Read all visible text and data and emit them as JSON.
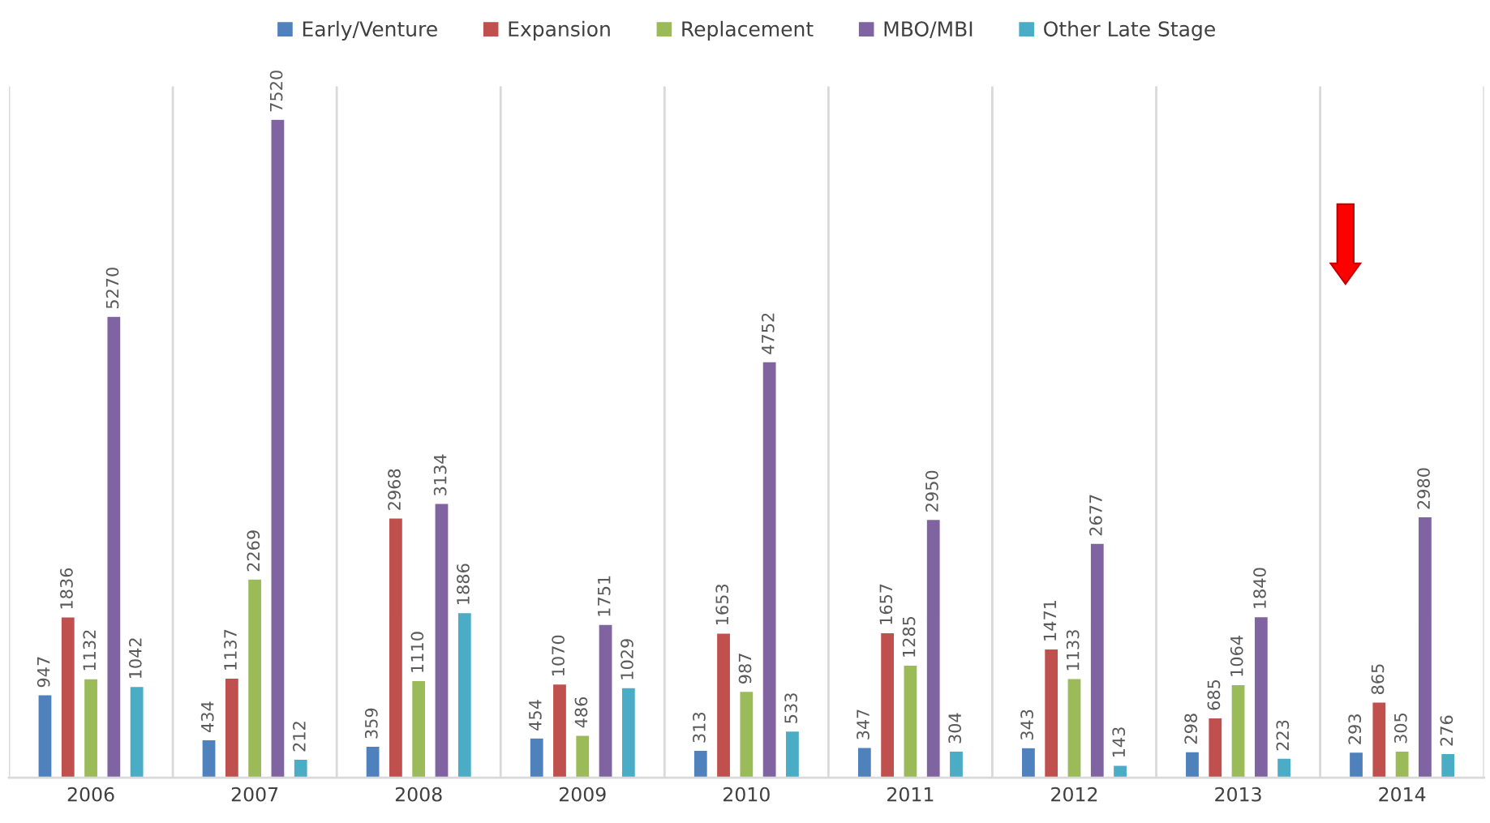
{
  "chart_data": {
    "type": "bar",
    "categories": [
      "2006",
      "2007",
      "2008",
      "2009",
      "2010",
      "2011",
      "2012",
      "2013",
      "2014"
    ],
    "series": [
      {
        "name": "Early/Venture",
        "color": "#4f81bd",
        "values": [
          947,
          434,
          359,
          454,
          313,
          347,
          343,
          298,
          293
        ]
      },
      {
        "name": "Expansion",
        "color": "#c0504d",
        "values": [
          1836,
          1137,
          2968,
          1070,
          1653,
          1657,
          1471,
          685,
          865
        ]
      },
      {
        "name": "Replacement",
        "color": "#9bbb59",
        "values": [
          1132,
          2269,
          1110,
          486,
          987,
          1285,
          1133,
          1064,
          305
        ]
      },
      {
        "name": "MBO/MBI",
        "color": "#8064a2",
        "values": [
          5270,
          7520,
          3134,
          1751,
          4752,
          2950,
          2677,
          1840,
          2980
        ]
      },
      {
        "name": "Other Late Stage",
        "color": "#4bacc6",
        "values": [
          1042,
          212,
          1886,
          1029,
          533,
          304,
          143,
          223,
          276
        ]
      }
    ],
    "data_labels": true,
    "grid": "x",
    "legend": "top"
  }
}
